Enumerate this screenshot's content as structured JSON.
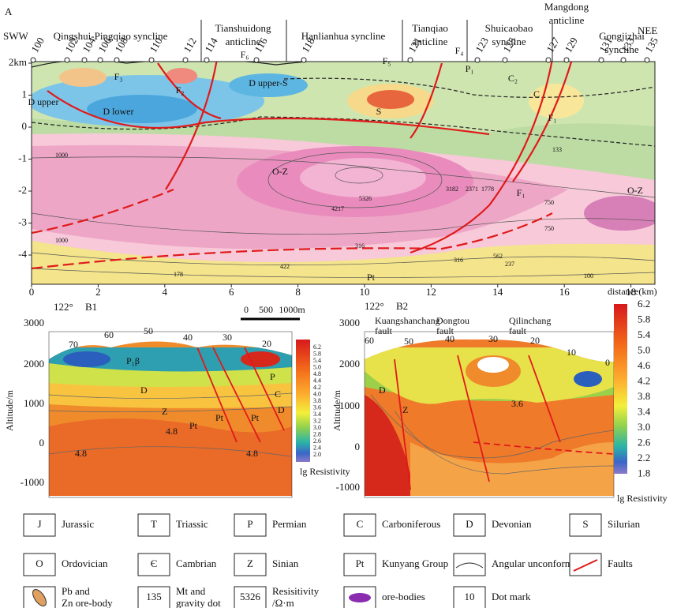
{
  "panel_a": {
    "label": "A",
    "directions": [
      "SWW",
      "NEE"
    ],
    "structures": [
      [
        "Qingshui-Pingqiao syncline"
      ],
      [
        "Tianshuidong",
        "anticline"
      ],
      [
        "Hanlianhua syncline"
      ],
      [
        "Tianqiao",
        "anticline"
      ],
      [
        "Shuicaobao",
        "syncline"
      ],
      [
        "Mangdong",
        "anticline"
      ],
      [
        "Gongjizhai",
        "syncline"
      ]
    ],
    "dots": [
      "100",
      "102",
      "104",
      "106",
      "108",
      "110",
      "112",
      "114",
      "116",
      "118",
      "121",
      "123",
      "125",
      "127",
      "129",
      "131",
      "133",
      "135"
    ],
    "y_ticks": [
      "2km",
      "1",
      "0",
      "-1",
      "-2",
      "-3",
      "-4"
    ],
    "x_ticks": [
      "0",
      "2",
      "4",
      "6",
      "8",
      "10",
      "12",
      "14",
      "16",
      "18"
    ],
    "x_title": "distance(km)",
    "units": [
      "O-Z",
      "O-Z",
      "Pt",
      "F₁",
      "F₁",
      "F₆",
      "F₅",
      "F₄",
      "D upper-S",
      "D lower",
      "D upper",
      "S",
      "C",
      "P₁",
      "C₂",
      "F₂",
      "F₃"
    ],
    "contours": [
      "5326",
      "4217",
      "3182",
      "2371",
      "1778",
      "1000",
      "750",
      "562",
      "422",
      "316",
      "178",
      "133",
      "100",
      "1000",
      "750",
      "316",
      "237"
    ]
  },
  "panel_b1": {
    "prefix": "122°",
    "label": "B1",
    "y_title": "Altitude/m",
    "y_ticks": [
      "3000",
      "2000",
      "1000",
      "0",
      "-1000"
    ],
    "dot_marks": [
      "70",
      "60",
      "50",
      "40",
      "30",
      "20"
    ],
    "scale": [
      "0",
      "500",
      "1000m"
    ],
    "units": [
      "P₁β",
      "D",
      "Z",
      "Pt",
      "Pt",
      "Pt",
      "P",
      "C",
      "D",
      "4.8",
      "4.8",
      "4.8"
    ],
    "colorbar_title": "lg Resistivity",
    "colorbar_ticks": [
      "6.2",
      "5.8",
      "5.4",
      "5.0",
      "4.8",
      "4.4",
      "4.2",
      "4.0",
      "3.8",
      "3.6",
      "3.4",
      "3.2",
      "3.0",
      "2.8",
      "2.6",
      "2.4",
      "2.0"
    ]
  },
  "panel_b2": {
    "prefix": "122°",
    "label": "B2",
    "faults": [
      [
        "Kuangshanchang",
        "fault"
      ],
      [
        "Dongtou",
        "fault"
      ],
      [
        "Qilinchang",
        "fault"
      ]
    ],
    "y_title": "Altitude/m",
    "y_ticks": [
      "3000",
      "2000",
      "1000",
      "0",
      "-1000"
    ],
    "dot_marks": [
      "60",
      "50",
      "40",
      "30",
      "20",
      "10",
      "0"
    ],
    "units": [
      "D",
      "Z",
      "3.6"
    ],
    "colorbar_title": "lg Resistivity",
    "colorbar_ticks": [
      "6.2",
      "5.8",
      "5.4",
      "5.0",
      "4.6",
      "4.2",
      "3.8",
      "3.4",
      "3.0",
      "2.6",
      "2.2",
      "1.8"
    ]
  },
  "legend": [
    [
      {
        "symbol": "J",
        "label": "Jurassic"
      },
      {
        "symbol": "T",
        "label": "Triassic"
      },
      {
        "symbol": "P",
        "label": "Permian"
      },
      {
        "symbol": "C",
        "label": "Carboniferous"
      },
      {
        "symbol": "D",
        "label": "Devonian"
      },
      {
        "symbol": "S",
        "label": "Silurian"
      }
    ],
    [
      {
        "symbol": "O",
        "label": "Ordovician"
      },
      {
        "symbol": "Є",
        "label": "Cambrian"
      },
      {
        "symbol": "Z",
        "label": "Sinian"
      },
      {
        "symbol": "Pt",
        "label": "Kunyang Group"
      },
      {
        "label": "Angular unconformity"
      },
      {
        "label": "Faults"
      }
    ],
    [
      {
        "label": "Pb and Zn ore-body"
      },
      {
        "symbol": "135",
        "label": "Mt and gravity dot"
      },
      {
        "symbol": "5326",
        "label": "Resisitivity /Ω·m"
      },
      {
        "label": "ore-bodies"
      },
      {
        "symbol": "10",
        "label": "Dot mark"
      }
    ]
  ]
}
